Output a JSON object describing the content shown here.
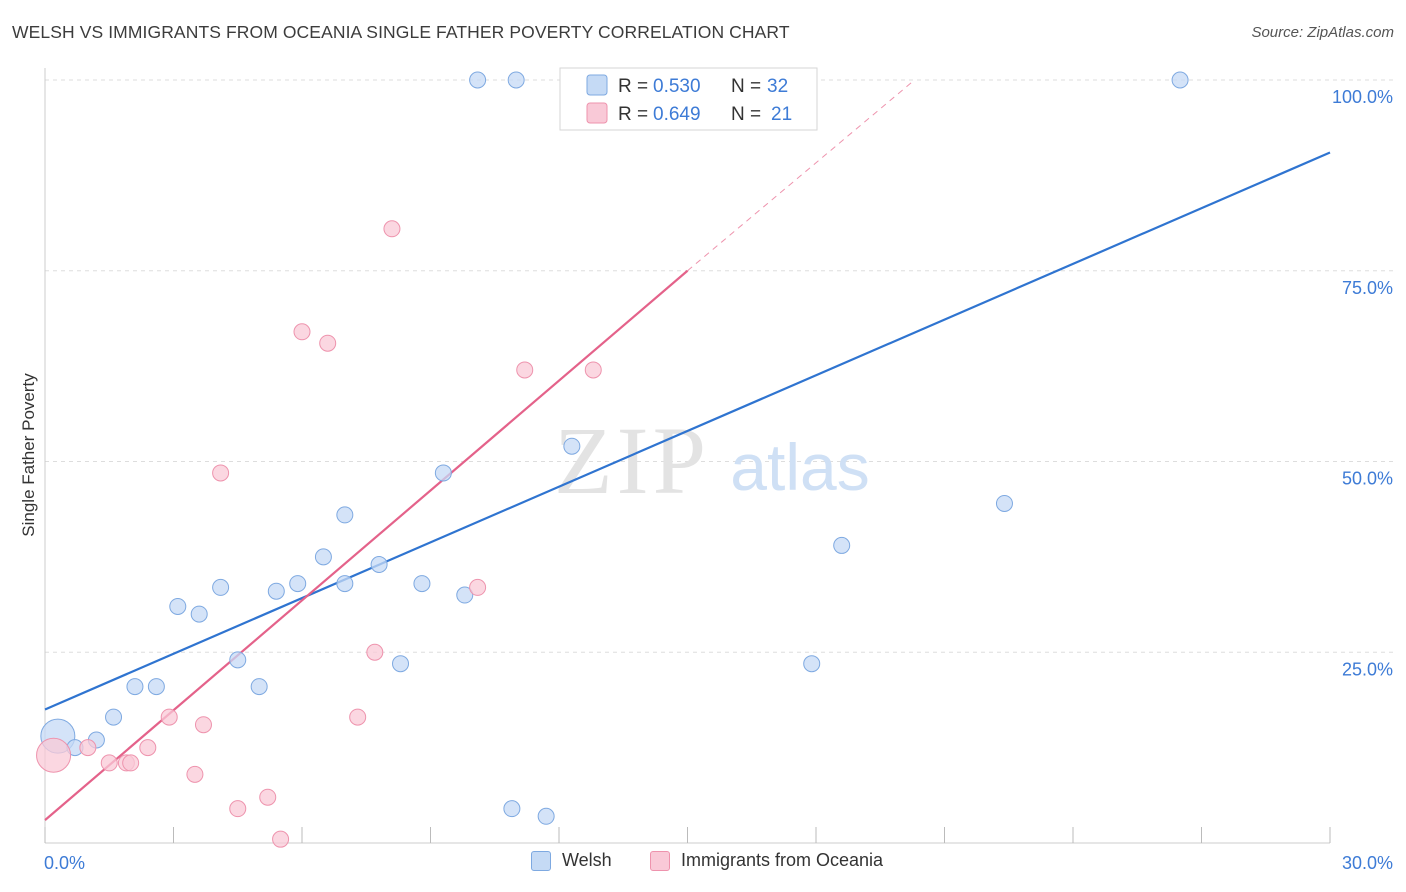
{
  "header": {
    "title": "WELSH VS IMMIGRANTS FROM OCEANIA SINGLE FATHER POVERTY CORRELATION CHART",
    "source": "Source: ZipAtlas.com"
  },
  "watermark": {
    "zip": "ZIP",
    "atlas": "atlas"
  },
  "colors": {
    "welsh_fill": "#c5daf5",
    "welsh_stroke": "#7ea9e1",
    "welsh_line": "#2f74d0",
    "oceania_fill": "#f9c9d7",
    "oceania_stroke": "#ee93ad",
    "oceania_line": "#e4628a",
    "axis_tick_label": "#3d7bd6",
    "grid": "#dddddd"
  },
  "legend_box": {
    "rows": [
      {
        "r_label": "R = ",
        "r_value": "0.530",
        "n_label": "N = ",
        "n_value": "32"
      },
      {
        "r_label": "R = ",
        "r_value": "0.649",
        "n_label": "N = ",
        "n_value": "21"
      }
    ]
  },
  "chart_data": {
    "type": "scatter",
    "title": "WELSH VS IMMIGRANTS FROM OCEANIA SINGLE FATHER POVERTY CORRELATION CHART",
    "xlabel": "",
    "ylabel": "Single Father Poverty",
    "xlim": [
      0,
      30
    ],
    "ylim": [
      0,
      100
    ],
    "x_tick_labels": [
      "0.0%",
      "30.0%"
    ],
    "y_ticks": [
      25,
      50,
      75,
      100
    ],
    "y_tick_labels": [
      "25.0%",
      "50.0%",
      "75.0%",
      "100.0%"
    ],
    "grid": true,
    "legend_position": "bottom",
    "series": [
      {
        "name": "Welsh",
        "R": 0.53,
        "N": 32,
        "trend": {
          "x": [
            0,
            30
          ],
          "y": [
            17.5,
            90.5
          ]
        },
        "points": [
          {
            "x": 0.3,
            "y": 14.0,
            "big": true
          },
          {
            "x": 0.7,
            "y": 12.5
          },
          {
            "x": 1.2,
            "y": 13.5
          },
          {
            "x": 1.6,
            "y": 16.5
          },
          {
            "x": 2.1,
            "y": 20.5
          },
          {
            "x": 2.6,
            "y": 20.5
          },
          {
            "x": 3.1,
            "y": 31.0
          },
          {
            "x": 3.6,
            "y": 30.0
          },
          {
            "x": 4.1,
            "y": 33.5
          },
          {
            "x": 4.5,
            "y": 24.0
          },
          {
            "x": 5.0,
            "y": 20.5
          },
          {
            "x": 5.4,
            "y": 33.0
          },
          {
            "x": 5.9,
            "y": 34.0
          },
          {
            "x": 6.5,
            "y": 37.5
          },
          {
            "x": 7.0,
            "y": 34.0
          },
          {
            "x": 7.0,
            "y": 43.0
          },
          {
            "x": 7.8,
            "y": 36.5
          },
          {
            "x": 8.3,
            "y": 23.5
          },
          {
            "x": 8.8,
            "y": 34.0
          },
          {
            "x": 9.3,
            "y": 48.5
          },
          {
            "x": 9.8,
            "y": 32.5
          },
          {
            "x": 10.1,
            "y": 100.0
          },
          {
            "x": 10.9,
            "y": 4.5
          },
          {
            "x": 11.0,
            "y": 100.0
          },
          {
            "x": 11.7,
            "y": 3.5
          },
          {
            "x": 12.3,
            "y": 52.0
          },
          {
            "x": 12.4,
            "y": 100.0
          },
          {
            "x": 14.0,
            "y": 100.0
          },
          {
            "x": 17.9,
            "y": 23.5
          },
          {
            "x": 18.6,
            "y": 39.0
          },
          {
            "x": 22.4,
            "y": 44.5
          },
          {
            "x": 26.5,
            "y": 100.0
          }
        ]
      },
      {
        "name": "Immigrants from Oceania",
        "R": 0.649,
        "N": 21,
        "trend": {
          "x": [
            0,
            15
          ],
          "y": [
            3.0,
            75.0
          ]
        },
        "trend_dashed": {
          "x": [
            15,
            20.3
          ],
          "y": [
            75.0,
            100.0
          ]
        },
        "points": [
          {
            "x": 0.2,
            "y": 11.5,
            "big": true
          },
          {
            "x": 1.0,
            "y": 12.5
          },
          {
            "x": 1.5,
            "y": 10.5
          },
          {
            "x": 1.9,
            "y": 10.5
          },
          {
            "x": 2.0,
            "y": 10.5
          },
          {
            "x": 2.4,
            "y": 12.5
          },
          {
            "x": 2.9,
            "y": 16.5
          },
          {
            "x": 3.5,
            "y": 9.0
          },
          {
            "x": 3.7,
            "y": 15.5
          },
          {
            "x": 4.1,
            "y": 48.5
          },
          {
            "x": 4.5,
            "y": 4.5
          },
          {
            "x": 5.2,
            "y": 6.0
          },
          {
            "x": 5.5,
            "y": 0.5
          },
          {
            "x": 6.0,
            "y": 67.0
          },
          {
            "x": 6.6,
            "y": 65.5
          },
          {
            "x": 7.3,
            "y": 16.5
          },
          {
            "x": 7.7,
            "y": 25.0
          },
          {
            "x": 8.1,
            "y": 80.5
          },
          {
            "x": 10.1,
            "y": 33.5
          },
          {
            "x": 11.2,
            "y": 62.0
          },
          {
            "x": 12.8,
            "y": 62.0
          }
        ]
      }
    ]
  }
}
